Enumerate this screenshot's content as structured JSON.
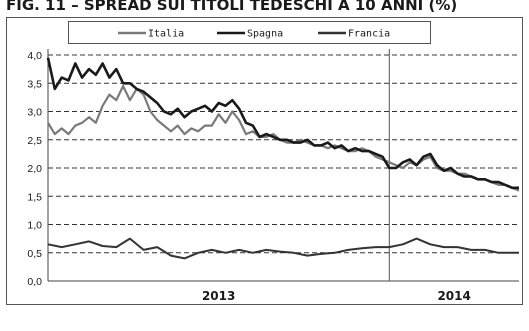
{
  "chart_data": {
    "type": "line",
    "title": "FIG. 11 – SPREAD SUI TITOLI TEDESCHI A 10 ANNI (%)",
    "ylim": [
      0,
      4
    ],
    "yticks": [
      "0,0",
      "0,5",
      "1,0",
      "1,5",
      "2,0",
      "2,5",
      "3,0",
      "3,5",
      "4,0"
    ],
    "x_categories": [
      "2013",
      "2014"
    ],
    "x_domain": [
      2013.0,
      2014.38
    ],
    "x_divider": 2014.0,
    "grid": "horizontal-dashed",
    "legend_position": "top",
    "series": [
      {
        "name": "Italia",
        "color": "#7a7a7a",
        "x": [
          2013.0,
          2013.02,
          2013.04,
          2013.06,
          2013.08,
          2013.1,
          2013.12,
          2013.14,
          2013.16,
          2013.18,
          2013.2,
          2013.22,
          2013.24,
          2013.26,
          2013.28,
          2013.3,
          2013.32,
          2013.34,
          2013.36,
          2013.38,
          2013.4,
          2013.42,
          2013.44,
          2013.46,
          2013.48,
          2013.5,
          2013.52,
          2013.54,
          2013.56,
          2013.58,
          2013.6,
          2013.62,
          2013.64,
          2013.66,
          2013.68,
          2013.7,
          2013.72,
          2013.74,
          2013.76,
          2013.78,
          2013.8,
          2013.82,
          2013.84,
          2013.86,
          2013.88,
          2013.9,
          2013.92,
          2013.94,
          2013.96,
          2013.98,
          2014.0,
          2014.02,
          2014.04,
          2014.06,
          2014.08,
          2014.1,
          2014.12,
          2014.14,
          2014.16,
          2014.18,
          2014.2,
          2014.22,
          2014.24,
          2014.26,
          2014.28,
          2014.3,
          2014.32,
          2014.34,
          2014.36,
          2014.38
        ],
        "values": [
          2.8,
          2.6,
          2.7,
          2.6,
          2.75,
          2.8,
          2.9,
          2.8,
          3.1,
          3.3,
          3.2,
          3.45,
          3.2,
          3.4,
          3.3,
          3.0,
          2.85,
          2.75,
          2.65,
          2.75,
          2.6,
          2.7,
          2.65,
          2.75,
          2.75,
          2.95,
          2.8,
          3.0,
          2.85,
          2.6,
          2.65,
          2.55,
          2.55,
          2.6,
          2.5,
          2.45,
          2.45,
          2.5,
          2.45,
          2.4,
          2.4,
          2.35,
          2.4,
          2.35,
          2.3,
          2.3,
          2.35,
          2.3,
          2.2,
          2.15,
          2.1,
          2.05,
          2.0,
          2.1,
          2.05,
          2.15,
          2.2,
          2.0,
          1.95,
          1.95,
          1.9,
          1.9,
          1.85,
          1.8,
          1.8,
          1.75,
          1.7,
          1.7,
          1.65,
          1.6
        ]
      },
      {
        "name": "Spagna",
        "color": "#1a1a1a",
        "x": [
          2013.0,
          2013.02,
          2013.04,
          2013.06,
          2013.08,
          2013.1,
          2013.12,
          2013.14,
          2013.16,
          2013.18,
          2013.2,
          2013.22,
          2013.24,
          2013.26,
          2013.28,
          2013.3,
          2013.32,
          2013.34,
          2013.36,
          2013.38,
          2013.4,
          2013.42,
          2013.44,
          2013.46,
          2013.48,
          2013.5,
          2013.52,
          2013.54,
          2013.56,
          2013.58,
          2013.6,
          2013.62,
          2013.64,
          2013.66,
          2013.68,
          2013.7,
          2013.72,
          2013.74,
          2013.76,
          2013.78,
          2013.8,
          2013.82,
          2013.84,
          2013.86,
          2013.88,
          2013.9,
          2013.92,
          2013.94,
          2013.96,
          2013.98,
          2014.0,
          2014.02,
          2014.04,
          2014.06,
          2014.08,
          2014.1,
          2014.12,
          2014.14,
          2014.16,
          2014.18,
          2014.2,
          2014.22,
          2014.24,
          2014.26,
          2014.28,
          2014.3,
          2014.32,
          2014.34,
          2014.36,
          2014.38
        ],
        "values": [
          3.95,
          3.4,
          3.6,
          3.55,
          3.85,
          3.6,
          3.75,
          3.65,
          3.85,
          3.6,
          3.75,
          3.5,
          3.5,
          3.4,
          3.35,
          3.25,
          3.15,
          3.0,
          2.95,
          3.05,
          2.9,
          3.0,
          3.05,
          3.1,
          3.0,
          3.15,
          3.1,
          3.2,
          3.05,
          2.8,
          2.75,
          2.55,
          2.6,
          2.55,
          2.5,
          2.5,
          2.45,
          2.45,
          2.5,
          2.4,
          2.4,
          2.45,
          2.35,
          2.4,
          2.3,
          2.35,
          2.3,
          2.3,
          2.25,
          2.2,
          2.0,
          2.0,
          2.1,
          2.15,
          2.05,
          2.2,
          2.25,
          2.05,
          1.95,
          2.0,
          1.9,
          1.85,
          1.85,
          1.8,
          1.8,
          1.75,
          1.75,
          1.7,
          1.65,
          1.65
        ]
      },
      {
        "name": "Francia",
        "color": "#333333",
        "x": [
          2013.0,
          2013.04,
          2013.08,
          2013.12,
          2013.16,
          2013.2,
          2013.24,
          2013.28,
          2013.32,
          2013.36,
          2013.4,
          2013.44,
          2013.48,
          2013.52,
          2013.56,
          2013.6,
          2013.64,
          2013.68,
          2013.72,
          2013.76,
          2013.8,
          2013.84,
          2013.88,
          2013.92,
          2013.96,
          2014.0,
          2014.04,
          2014.08,
          2014.12,
          2014.16,
          2014.2,
          2014.24,
          2014.28,
          2014.32,
          2014.38
        ],
        "values": [
          0.65,
          0.6,
          0.65,
          0.7,
          0.62,
          0.6,
          0.75,
          0.55,
          0.6,
          0.45,
          0.4,
          0.5,
          0.55,
          0.5,
          0.55,
          0.5,
          0.55,
          0.52,
          0.5,
          0.45,
          0.48,
          0.5,
          0.55,
          0.58,
          0.6,
          0.6,
          0.65,
          0.75,
          0.65,
          0.6,
          0.6,
          0.55,
          0.55,
          0.5,
          0.5
        ]
      }
    ]
  }
}
